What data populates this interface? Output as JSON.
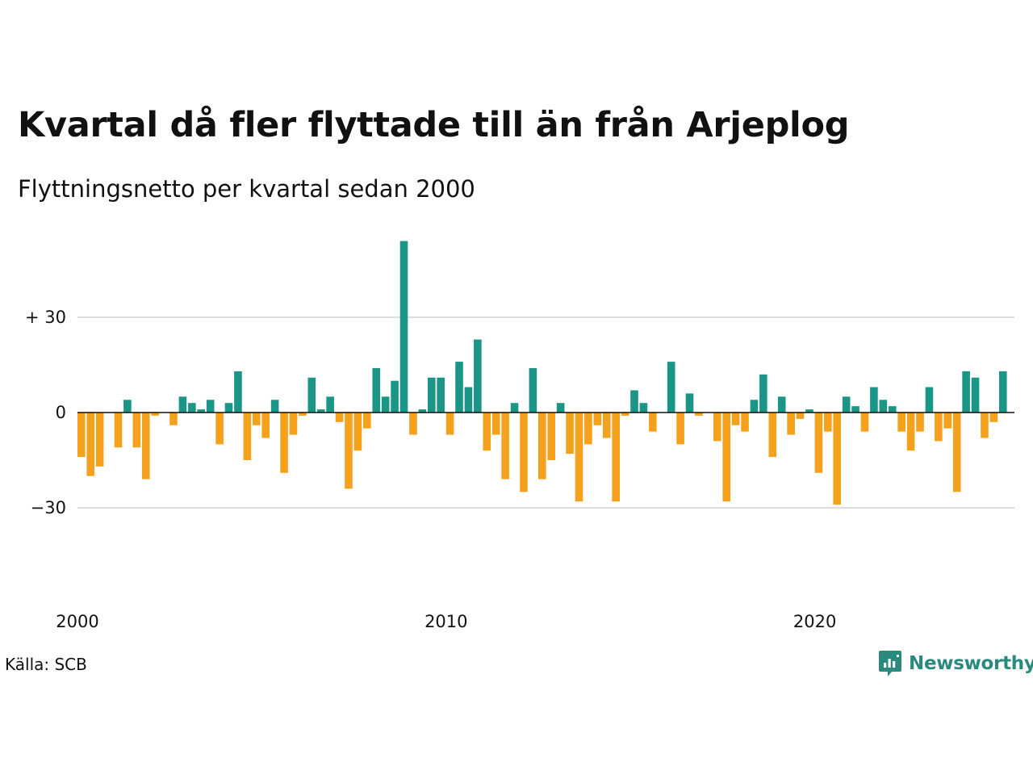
{
  "title": "Kvartal då fler flyttade till än från Arjeplog",
  "subtitle": "Flyttningsnetto per kvartal sedan 2000",
  "source": "Källa: SCB",
  "brand": {
    "name": "Newsworthy",
    "logo_icon": "newsworthy-chat-bar-logo-icon"
  },
  "colors": {
    "positive": "#1b9686",
    "negative": "#f4a11d",
    "grid": "#dddddd",
    "baseline": "#111111"
  },
  "chart_data": {
    "type": "bar",
    "title": "Kvartal då fler flyttade till än från Arjeplog",
    "subtitle": "Flyttningsnetto per kvartal sedan 2000",
    "xlabel": "",
    "ylabel": "",
    "ylim": [
      -55,
      55
    ],
    "yticks": [
      {
        "value": 30,
        "label": "+ 30"
      },
      {
        "value": 0,
        "label": "0"
      },
      {
        "value": -30,
        "label": "−30"
      }
    ],
    "xticks": [
      {
        "label": "2000",
        "quarter_index": 0
      },
      {
        "label": "2010",
        "quarter_index": 40
      },
      {
        "label": "2020",
        "quarter_index": 80
      }
    ],
    "grid": true,
    "start": "2000 Q1",
    "values": [
      -14,
      -20,
      -17,
      0,
      -11,
      4,
      -11,
      -21,
      -1,
      0,
      -4,
      5,
      3,
      1,
      4,
      -10,
      3,
      13,
      -15,
      -4,
      -8,
      4,
      -19,
      -7,
      -1,
      11,
      1,
      5,
      -3,
      -24,
      -12,
      -5,
      14,
      5,
      10,
      54,
      -7,
      1,
      11,
      11,
      -7,
      16,
      8,
      23,
      -12,
      -7,
      -21,
      3,
      -25,
      14,
      -21,
      -15,
      3,
      -13,
      -28,
      -10,
      -4,
      -8,
      -28,
      -1,
      7,
      3,
      -6,
      0,
      16,
      -10,
      6,
      -1,
      0,
      -9,
      -28,
      -4,
      -6,
      4,
      12,
      -14,
      5,
      -7,
      -2,
      1,
      -19,
      -6,
      -29,
      5,
      2,
      -6,
      8,
      4,
      2,
      -6,
      -12,
      -6,
      8,
      -9,
      -5,
      -25,
      13,
      11,
      -8,
      -3,
      13
    ]
  }
}
